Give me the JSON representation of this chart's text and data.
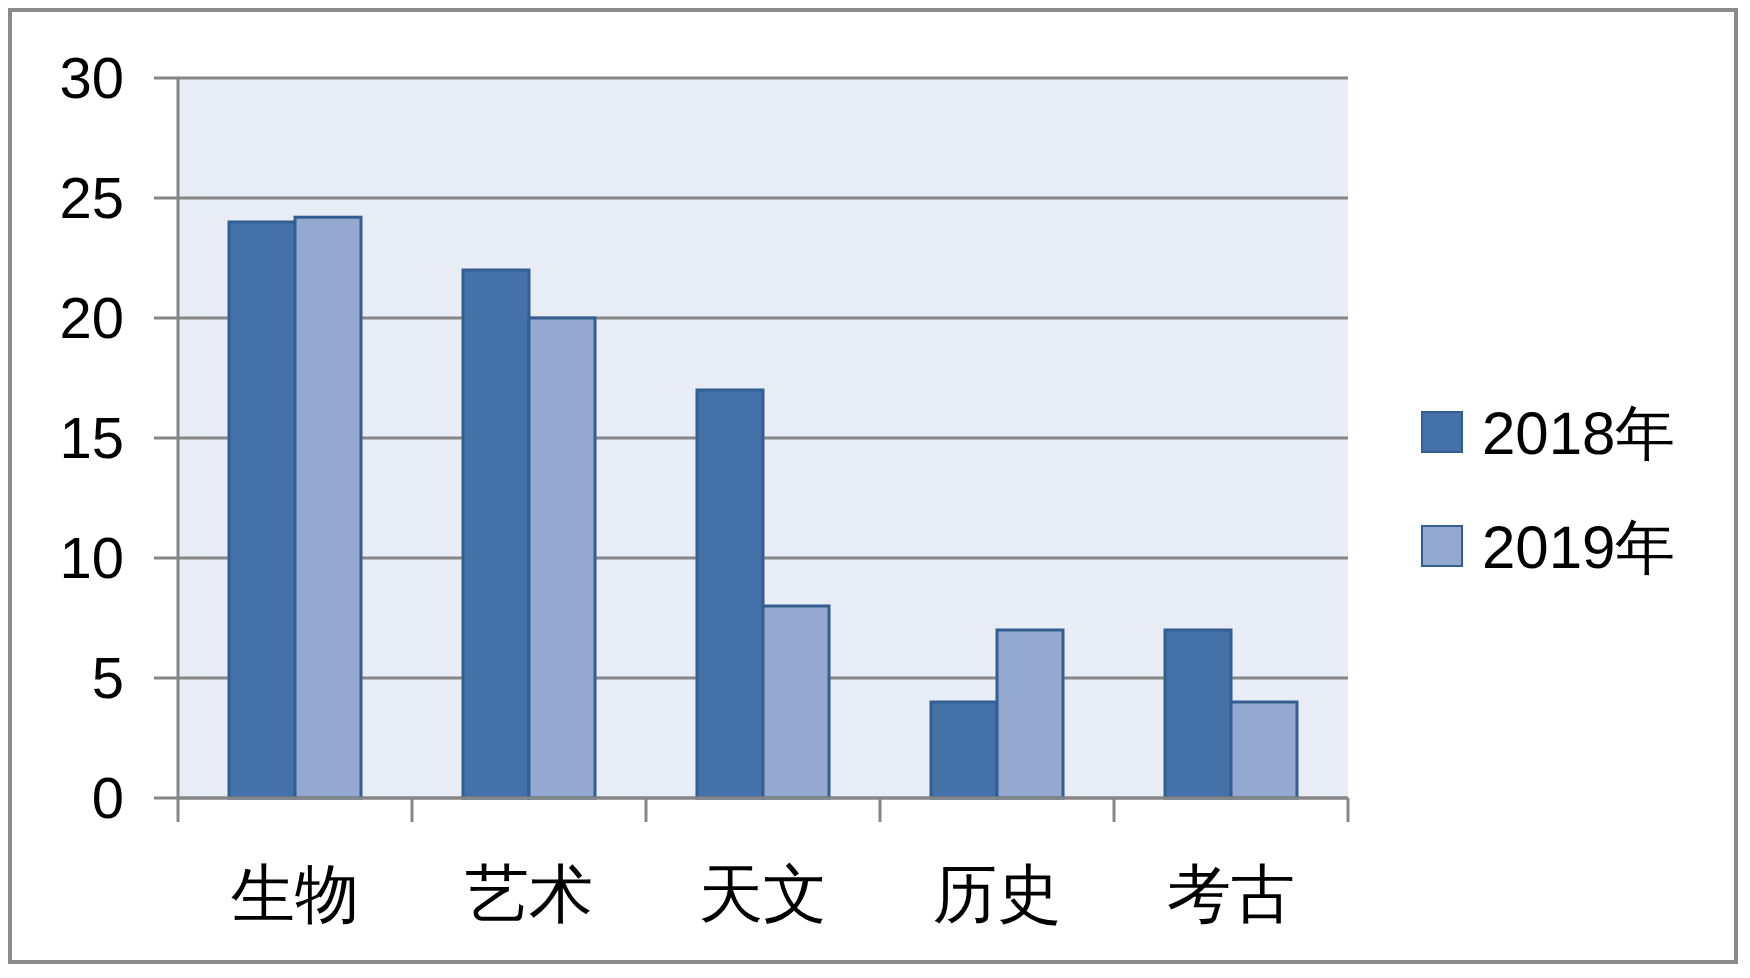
{
  "chart_data": {
    "type": "bar",
    "categories": [
      "生物",
      "艺术",
      "天文",
      "历史",
      "考古"
    ],
    "series": [
      {
        "name": "2018年",
        "color": "#4472a8",
        "values": [
          24,
          22,
          17,
          4,
          7
        ]
      },
      {
        "name": "2019年",
        "color": "#95a9d0",
        "values": [
          24.2,
          20,
          8,
          7,
          4
        ]
      }
    ],
    "ylim": [
      0,
      30
    ],
    "yticks": [
      0,
      5,
      10,
      15,
      20,
      25,
      30
    ],
    "grid": "y",
    "legend": "right"
  }
}
